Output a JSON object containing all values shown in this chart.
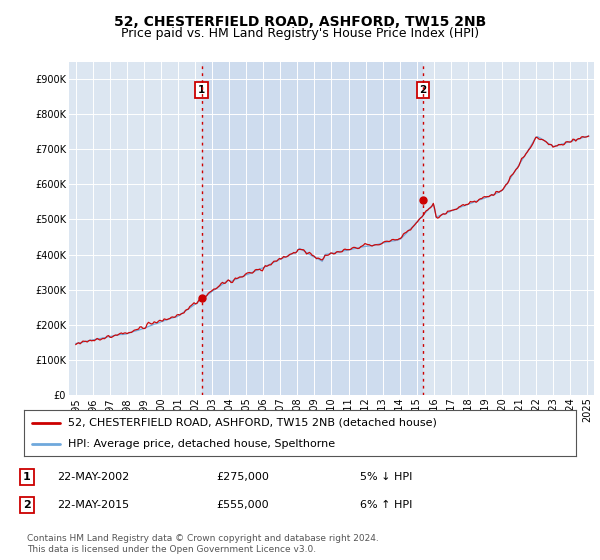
{
  "title": "52, CHESTERFIELD ROAD, ASHFORD, TW15 2NB",
  "subtitle": "Price paid vs. HM Land Registry's House Price Index (HPI)",
  "ylim": [
    0,
    950000
  ],
  "yticks": [
    0,
    100000,
    200000,
    300000,
    400000,
    500000,
    600000,
    700000,
    800000,
    900000
  ],
  "ytick_labels": [
    "£0",
    "£100K",
    "£200K",
    "£300K",
    "£400K",
    "£500K",
    "£600K",
    "£700K",
    "£800K",
    "£900K"
  ],
  "background_color": "#dce6f1",
  "hpi_color": "#6fa8dc",
  "price_color": "#cc0000",
  "sale1_year": 2002.38,
  "sale1_price": 275000,
  "sale2_year": 2015.38,
  "sale2_price": 555000,
  "sale1_date": "22-MAY-2002",
  "sale1_pct": "5% ↓ HPI",
  "sale2_date": "22-MAY-2015",
  "sale2_pct": "6% ↑ HPI",
  "legend_line1": "52, CHESTERFIELD ROAD, ASHFORD, TW15 2NB (detached house)",
  "legend_line2": "HPI: Average price, detached house, Spelthorne",
  "footnote1": "Contains HM Land Registry data © Crown copyright and database right 2024.",
  "footnote2": "This data is licensed under the Open Government Licence v3.0.",
  "title_fontsize": 10,
  "subtitle_fontsize": 9,
  "tick_fontsize": 7,
  "legend_fontsize": 8,
  "table_fontsize": 8
}
